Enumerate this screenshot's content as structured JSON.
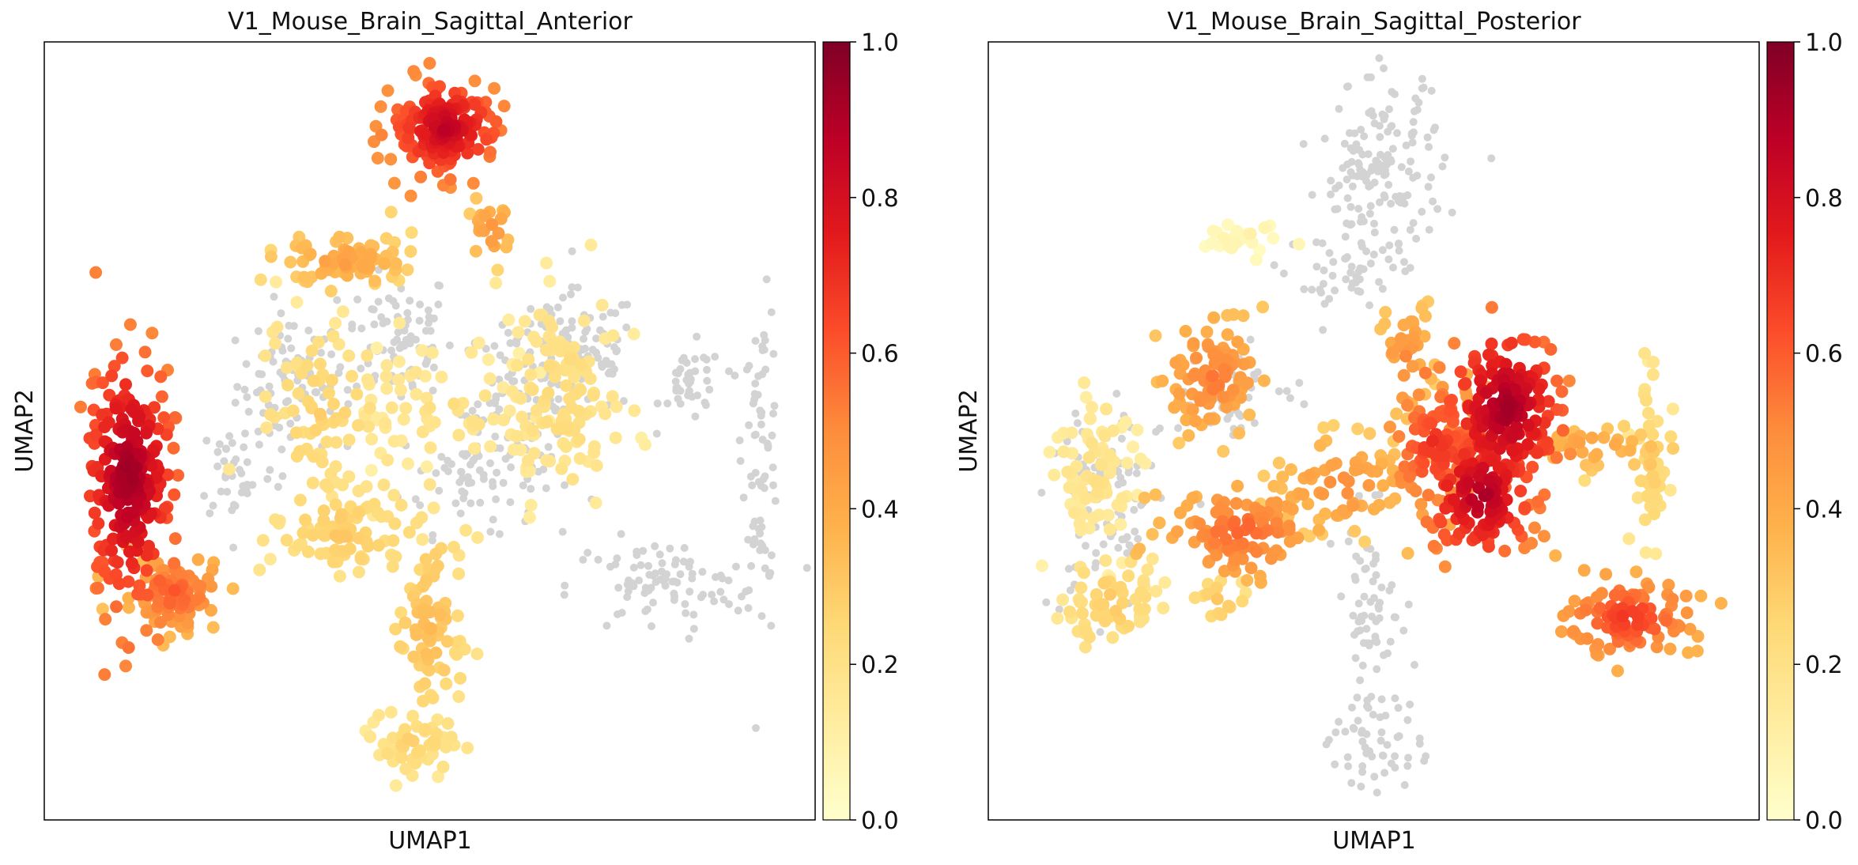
{
  "chart_data": [
    {
      "type": "scatter",
      "title": "V1_Mouse_Brain_Sagittal_Anterior",
      "xlabel": "UMAP1",
      "ylabel": "UMAP2",
      "x_ticks": "none",
      "y_ticks": "none",
      "grid": false,
      "colormap": "YlOrRd",
      "colorbar": {
        "range": [
          0.0,
          1.0
        ],
        "ticks": [
          "0.0",
          "0.2",
          "0.4",
          "0.6",
          "0.8",
          "1.0"
        ]
      },
      "background_points": {
        "color": "#d3d3d3",
        "clusters": [
          {
            "x": 3.2,
            "y": 5.6,
            "sx": 0.35,
            "sy": 0.45,
            "n": 90
          },
          {
            "x": 4.6,
            "y": 6.2,
            "sx": 0.35,
            "sy": 0.45,
            "n": 80
          },
          {
            "x": 5.5,
            "y": 4.4,
            "sx": 0.45,
            "sy": 0.35,
            "n": 60
          },
          {
            "x": 6.2,
            "y": 5.4,
            "sx": 0.4,
            "sy": 0.5,
            "n": 110
          },
          {
            "x": 7.0,
            "y": 6.0,
            "sx": 0.35,
            "sy": 0.4,
            "n": 80
          },
          {
            "x": 8.4,
            "y": 5.6,
            "sx": 0.2,
            "sy": 0.25,
            "n": 40
          },
          {
            "x": 9.3,
            "y": 4.8,
            "sx": 0.12,
            "sy": 0.9,
            "n": 70
          },
          {
            "x": 8.0,
            "y": 3.0,
            "sx": 0.6,
            "sy": 0.3,
            "n": 90
          },
          {
            "x": 2.5,
            "y": 4.5,
            "sx": 0.25,
            "sy": 0.35,
            "n": 40
          }
        ]
      },
      "expression_clusters": [
        {
          "x": 1.1,
          "y": 4.4,
          "sx": 0.28,
          "sy": 0.75,
          "value": 0.96,
          "n": 260
        },
        {
          "x": 1.7,
          "y": 2.9,
          "sx": 0.3,
          "sy": 0.25,
          "value": 0.62,
          "n": 90
        },
        {
          "x": 5.2,
          "y": 8.9,
          "sx": 0.35,
          "sy": 0.3,
          "value": 0.88,
          "n": 170
        },
        {
          "x": 3.9,
          "y": 7.2,
          "sx": 0.45,
          "sy": 0.18,
          "value": 0.45,
          "n": 70
        },
        {
          "x": 5.8,
          "y": 7.6,
          "sx": 0.15,
          "sy": 0.2,
          "value": 0.5,
          "n": 20
        },
        {
          "x": 3.6,
          "y": 5.2,
          "sx": 0.4,
          "sy": 0.6,
          "value": 0.28,
          "n": 80
        },
        {
          "x": 3.9,
          "y": 3.7,
          "sx": 0.5,
          "sy": 0.35,
          "value": 0.3,
          "n": 80
        },
        {
          "x": 5.2,
          "y": 5.3,
          "sx": 0.6,
          "sy": 0.4,
          "value": 0.22,
          "n": 60
        },
        {
          "x": 6.7,
          "y": 5.4,
          "sx": 0.4,
          "sy": 0.7,
          "value": 0.24,
          "n": 130
        },
        {
          "x": 5.0,
          "y": 2.5,
          "sx": 0.25,
          "sy": 0.65,
          "value": 0.35,
          "n": 80
        },
        {
          "x": 4.8,
          "y": 1.0,
          "sx": 0.3,
          "sy": 0.2,
          "value": 0.27,
          "n": 50
        }
      ]
    },
    {
      "type": "scatter",
      "title": "V1_Mouse_Brain_Sagittal_Posterior",
      "xlabel": "UMAP1",
      "ylabel": "UMAP2",
      "x_ticks": "none",
      "y_ticks": "none",
      "grid": false,
      "colormap": "YlOrRd",
      "colorbar": {
        "range": [
          0.0,
          1.0
        ],
        "ticks": [
          "0.0",
          "0.2",
          "0.4",
          "0.6",
          "0.8",
          "1.0"
        ]
      },
      "background_points": {
        "color": "#d3d3d3",
        "clusters": [
          {
            "x": 5.1,
            "y": 8.3,
            "sx": 0.4,
            "sy": 0.6,
            "n": 160
          },
          {
            "x": 4.6,
            "y": 6.9,
            "sx": 0.3,
            "sy": 0.3,
            "n": 40
          },
          {
            "x": 1.5,
            "y": 4.0,
            "sx": 0.35,
            "sy": 0.7,
            "n": 90
          },
          {
            "x": 5.0,
            "y": 2.5,
            "sx": 0.25,
            "sy": 0.7,
            "n": 80
          },
          {
            "x": 5.0,
            "y": 0.9,
            "sx": 0.3,
            "sy": 0.25,
            "n": 40
          },
          {
            "x": 3.2,
            "y": 5.4,
            "sx": 0.5,
            "sy": 0.3,
            "n": 40
          }
        ]
      },
      "expression_clusters": [
        {
          "x": 6.7,
          "y": 5.3,
          "sx": 0.35,
          "sy": 0.5,
          "value": 0.95,
          "n": 190
        },
        {
          "x": 6.4,
          "y": 4.2,
          "sx": 0.35,
          "sy": 0.4,
          "value": 0.92,
          "n": 140
        },
        {
          "x": 5.8,
          "y": 4.8,
          "sx": 0.3,
          "sy": 0.4,
          "value": 0.72,
          "n": 80
        },
        {
          "x": 8.3,
          "y": 2.6,
          "sx": 0.4,
          "sy": 0.25,
          "value": 0.7,
          "n": 100
        },
        {
          "x": 8.6,
          "y": 4.6,
          "sx": 0.12,
          "sy": 0.5,
          "value": 0.3,
          "n": 50
        },
        {
          "x": 7.8,
          "y": 4.8,
          "sx": 0.5,
          "sy": 0.15,
          "value": 0.45,
          "n": 40
        },
        {
          "x": 3.3,
          "y": 3.7,
          "sx": 0.5,
          "sy": 0.3,
          "value": 0.6,
          "n": 100
        },
        {
          "x": 2.9,
          "y": 5.7,
          "sx": 0.35,
          "sy": 0.4,
          "value": 0.55,
          "n": 90
        },
        {
          "x": 5.4,
          "y": 5.9,
          "sx": 0.2,
          "sy": 0.4,
          "value": 0.5,
          "n": 40
        },
        {
          "x": 4.6,
          "y": 4.3,
          "sx": 0.5,
          "sy": 0.3,
          "value": 0.5,
          "n": 70
        },
        {
          "x": 1.4,
          "y": 4.5,
          "sx": 0.3,
          "sy": 0.6,
          "value": 0.2,
          "n": 80
        },
        {
          "x": 1.6,
          "y": 2.8,
          "sx": 0.3,
          "sy": 0.3,
          "value": 0.3,
          "n": 60
        },
        {
          "x": 3.3,
          "y": 7.5,
          "sx": 0.25,
          "sy": 0.12,
          "value": 0.08,
          "n": 25
        },
        {
          "x": 3.0,
          "y": 2.8,
          "sx": 0.2,
          "sy": 0.15,
          "value": 0.32,
          "n": 15
        }
      ]
    }
  ]
}
